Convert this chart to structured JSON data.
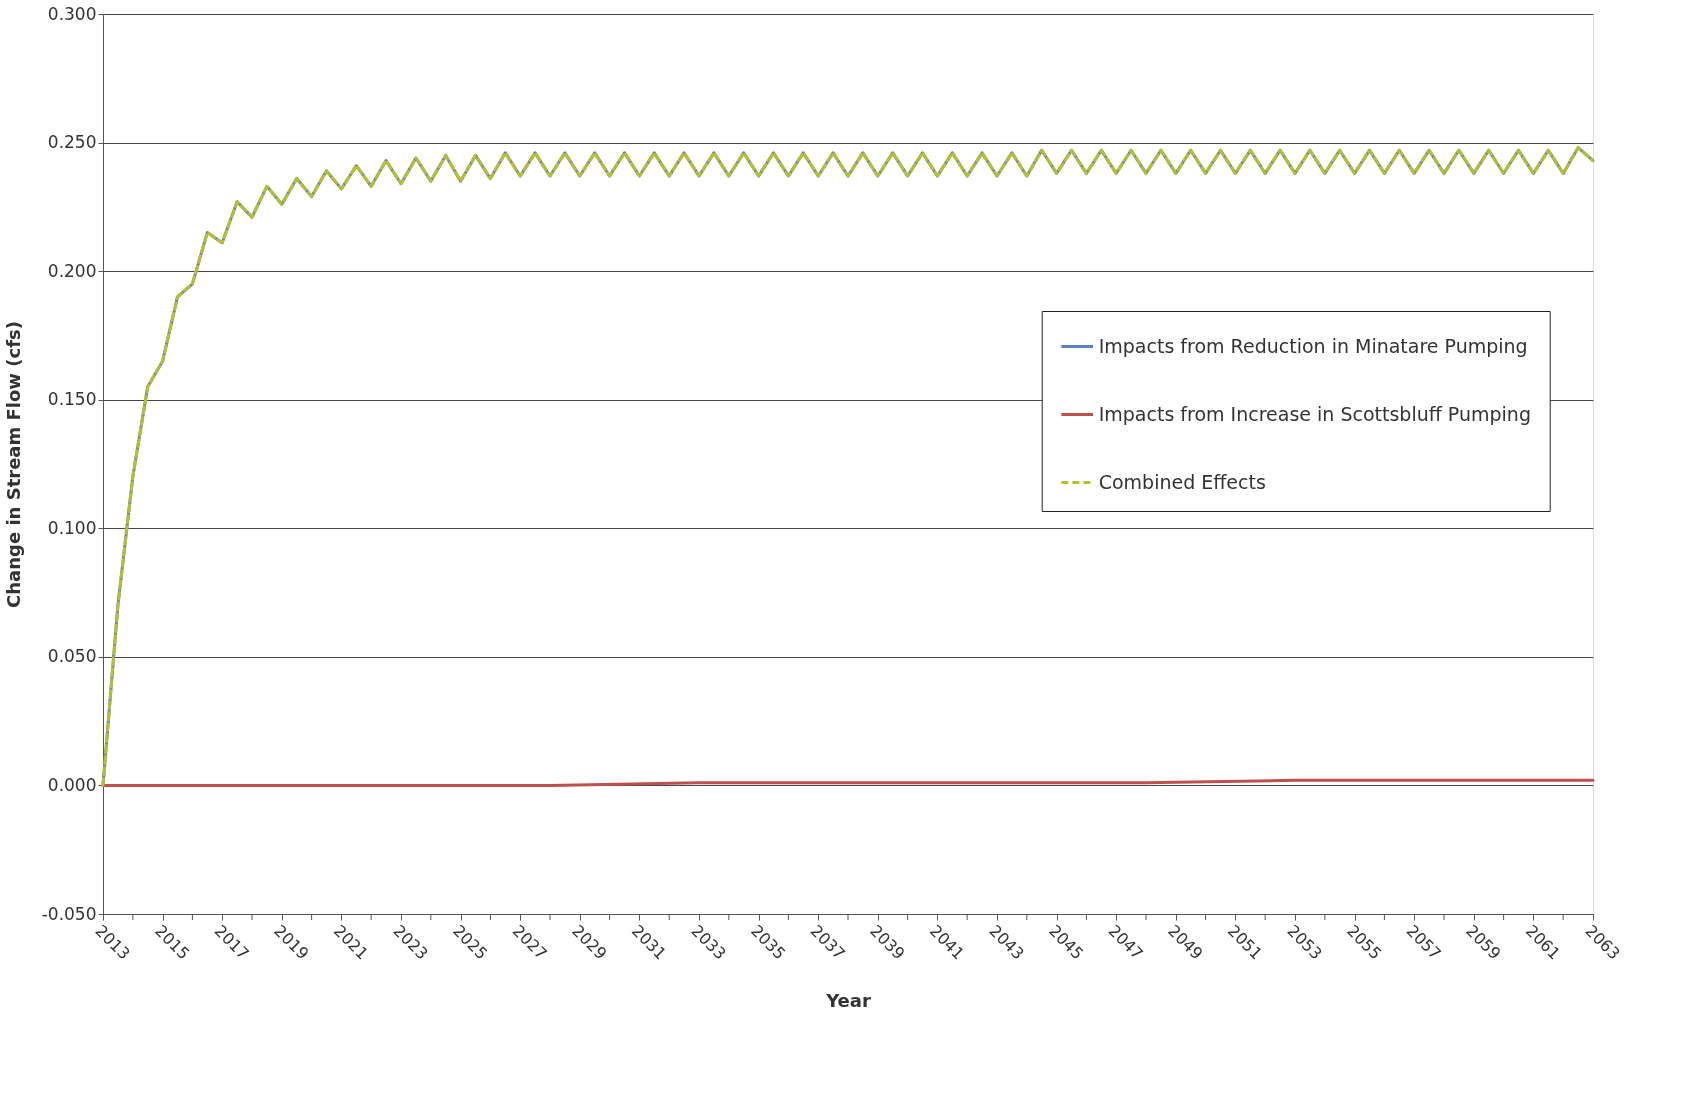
{
  "chart_data": {
    "type": "line",
    "xlabel": "Year",
    "ylabel": "Change in Stream Flow (cfs)",
    "x": [
      2013,
      2013.5,
      2014,
      2014.5,
      2015,
      2015.5,
      2016,
      2016.5,
      2017,
      2017.5,
      2018,
      2018.5,
      2019,
      2019.5,
      2020,
      2020.5,
      2021,
      2021.5,
      2022,
      2022.5,
      2023,
      2023.5,
      2024,
      2024.5,
      2025,
      2025.5,
      2026,
      2026.5,
      2027,
      2027.5,
      2028,
      2028.5,
      2029,
      2029.5,
      2030,
      2030.5,
      2031,
      2031.5,
      2032,
      2032.5,
      2033,
      2033.5,
      2034,
      2034.5,
      2035,
      2035.5,
      2036,
      2036.5,
      2037,
      2037.5,
      2038,
      2038.5,
      2039,
      2039.5,
      2040,
      2040.5,
      2041,
      2041.5,
      2042,
      2042.5,
      2043,
      2043.5,
      2044,
      2044.5,
      2045,
      2045.5,
      2046,
      2046.5,
      2047,
      2047.5,
      2048,
      2048.5,
      2049,
      2049.5,
      2050,
      2050.5,
      2051,
      2051.5,
      2052,
      2052.5,
      2053,
      2053.5,
      2054,
      2054.5,
      2055,
      2055.5,
      2056,
      2056.5,
      2057,
      2057.5,
      2058,
      2058.5,
      2059,
      2059.5,
      2060,
      2060.5,
      2061,
      2061.5,
      2062,
      2062.5,
      2063
    ],
    "series": [
      {
        "name": "Impacts from Reduction in Minatare Pumping",
        "color": "#5b7fc4",
        "line_style": "solid",
        "values": [
          0,
          0.07,
          0.12,
          0.155,
          0.165,
          0.19,
          0.195,
          0.215,
          0.211,
          0.227,
          0.221,
          0.233,
          0.226,
          0.236,
          0.229,
          0.239,
          0.232,
          0.241,
          0.233,
          0.243,
          0.234,
          0.244,
          0.235,
          0.245,
          0.235,
          0.245,
          0.236,
          0.246,
          0.237,
          0.246,
          0.237,
          0.246,
          0.237,
          0.246,
          0.237,
          0.246,
          0.237,
          0.246,
          0.237,
          0.246,
          0.237,
          0.246,
          0.237,
          0.246,
          0.237,
          0.246,
          0.237,
          0.246,
          0.237,
          0.246,
          0.237,
          0.246,
          0.237,
          0.246,
          0.237,
          0.246,
          0.237,
          0.246,
          0.237,
          0.246,
          0.237,
          0.246,
          0.237,
          0.247,
          0.238,
          0.247,
          0.238,
          0.247,
          0.238,
          0.247,
          0.238,
          0.247,
          0.238,
          0.247,
          0.238,
          0.247,
          0.238,
          0.247,
          0.238,
          0.247,
          0.238,
          0.247,
          0.238,
          0.247,
          0.238,
          0.247,
          0.238,
          0.247,
          0.238,
          0.247,
          0.238,
          0.247,
          0.238,
          0.247,
          0.238,
          0.247,
          0.238,
          0.247,
          0.238,
          0.248,
          0.243
        ]
      },
      {
        "name": "Impacts from Increase in Scottsbluff Pumping",
        "color": "#c0504d",
        "line_style": "solid",
        "x": [
          2013,
          2018,
          2023,
          2028,
          2033,
          2038,
          2043,
          2048,
          2053,
          2058,
          2063
        ],
        "values": [
          0,
          0,
          0,
          0,
          0.001,
          0.001,
          0.001,
          0.001,
          0.002,
          0.002,
          0.002
        ]
      },
      {
        "name": "Combined Effects",
        "color": "#b8bf2e",
        "line_style": "dashed",
        "values": [
          0,
          0.07,
          0.12,
          0.155,
          0.165,
          0.19,
          0.195,
          0.215,
          0.211,
          0.227,
          0.221,
          0.233,
          0.226,
          0.236,
          0.229,
          0.239,
          0.232,
          0.241,
          0.233,
          0.243,
          0.234,
          0.244,
          0.235,
          0.245,
          0.235,
          0.245,
          0.236,
          0.246,
          0.237,
          0.246,
          0.237,
          0.246,
          0.237,
          0.246,
          0.237,
          0.246,
          0.237,
          0.246,
          0.237,
          0.246,
          0.237,
          0.246,
          0.237,
          0.246,
          0.237,
          0.246,
          0.237,
          0.246,
          0.237,
          0.246,
          0.237,
          0.246,
          0.237,
          0.246,
          0.237,
          0.246,
          0.237,
          0.246,
          0.237,
          0.246,
          0.237,
          0.246,
          0.237,
          0.247,
          0.238,
          0.247,
          0.238,
          0.247,
          0.238,
          0.247,
          0.238,
          0.247,
          0.238,
          0.247,
          0.238,
          0.247,
          0.238,
          0.247,
          0.238,
          0.247,
          0.238,
          0.247,
          0.238,
          0.247,
          0.238,
          0.247,
          0.238,
          0.247,
          0.238,
          0.247,
          0.238,
          0.247,
          0.238,
          0.247,
          0.238,
          0.247,
          0.238,
          0.247,
          0.238,
          0.248,
          0.243
        ]
      }
    ],
    "xlim": [
      2013,
      2063
    ],
    "xticks": [
      2013,
      {
        "value": 2014,
        "label": null
      },
      2015,
      {
        "value": 2016,
        "label": null
      },
      2017,
      {
        "value": 2018,
        "label": null
      },
      2019,
      {
        "value": 2020,
        "label": null
      },
      2021,
      {
        "value": 2022,
        "label": null
      },
      2023,
      {
        "value": 2024,
        "label": null
      },
      2025,
      {
        "value": 2026,
        "label": null
      },
      2027,
      {
        "value": 2028,
        "label": null
      },
      2029,
      {
        "value": 2030,
        "label": null
      },
      2031,
      {
        "value": 2032,
        "label": null
      },
      2033,
      {
        "value": 2034,
        "label": null
      },
      2035,
      {
        "value": 2036,
        "label": null
      },
      2037,
      {
        "value": 2038,
        "label": null
      },
      2039,
      {
        "value": 2040,
        "label": null
      },
      2041,
      {
        "value": 2042,
        "label": null
      },
      2043,
      {
        "value": 2044,
        "label": null
      },
      2045,
      {
        "value": 2046,
        "label": null
      },
      2047,
      {
        "value": 2048,
        "label": null
      },
      2049,
      {
        "value": 2050,
        "label": null
      },
      2051,
      {
        "value": 2052,
        "label": null
      },
      2053,
      {
        "value": 2054,
        "label": null
      },
      2055,
      {
        "value": 2056,
        "label": null
      },
      2057,
      {
        "value": 2058,
        "label": null
      },
      2059,
      {
        "value": 2060,
        "label": null
      },
      2061,
      {
        "value": 2062,
        "label": null
      },
      2063
    ],
    "ylim": [
      -0.05,
      0.3
    ],
    "yticks": [
      {
        "value": -0.05,
        "label": "-0.050"
      },
      {
        "value": 0,
        "label": "0.000"
      },
      {
        "value": 0.05,
        "label": "0.050"
      },
      {
        "value": 0.1,
        "label": "0.100"
      },
      {
        "value": 0.15,
        "label": "0.150"
      },
      {
        "value": 0.2,
        "label": "0.200"
      },
      {
        "value": 0.25,
        "label": "0.250"
      },
      {
        "value": 0.3,
        "label": "0.300"
      }
    ],
    "grid": "y",
    "legend": "right",
    "marker": "none"
  }
}
